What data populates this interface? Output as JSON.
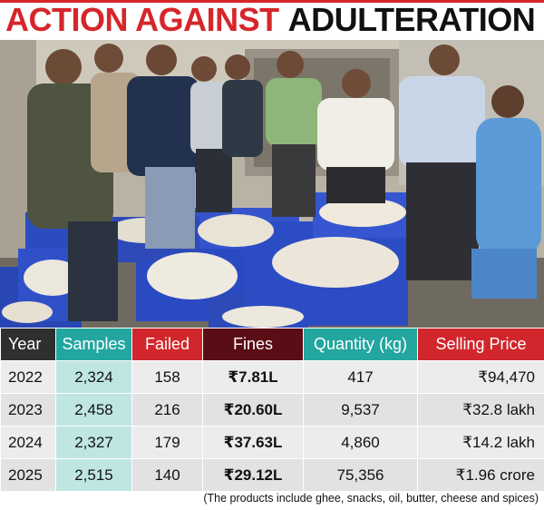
{
  "headline": {
    "part1": "ACTION AGAINST",
    "part2": "ADULTERATION"
  },
  "colors": {
    "headline_red": "#d6262b",
    "teal": "#23a69f",
    "red": "#d1262b",
    "maroon": "#5a0d14",
    "dark": "#2f2f2f"
  },
  "table": {
    "headers": {
      "year": "Year",
      "samples": "Samples",
      "failed": "Failed",
      "fines": "Fines",
      "quantity": "Quantity (kg)",
      "price": "Selling Price"
    },
    "rows": [
      {
        "year": "2022",
        "samples": "2,324",
        "failed": "158",
        "fines": "₹7.81L",
        "quantity": "417",
        "price": "₹94,470"
      },
      {
        "year": "2023",
        "samples": "2,458",
        "failed": "216",
        "fines": "₹20.60L",
        "quantity": "9,537",
        "price": "₹32.8 lakh"
      },
      {
        "year": "2024",
        "samples": "2,327",
        "failed": "179",
        "fines": "₹37.63L",
        "quantity": "4,860",
        "price": "₹14.2 lakh"
      },
      {
        "year": "2025",
        "samples": "2,515",
        "failed": "140",
        "fines": "₹29.12L",
        "quantity": "75,356",
        "price": "₹1.96 crore"
      }
    ]
  },
  "footnote": "(The products include ghee, snacks, oil, butter, cheese and spices)"
}
